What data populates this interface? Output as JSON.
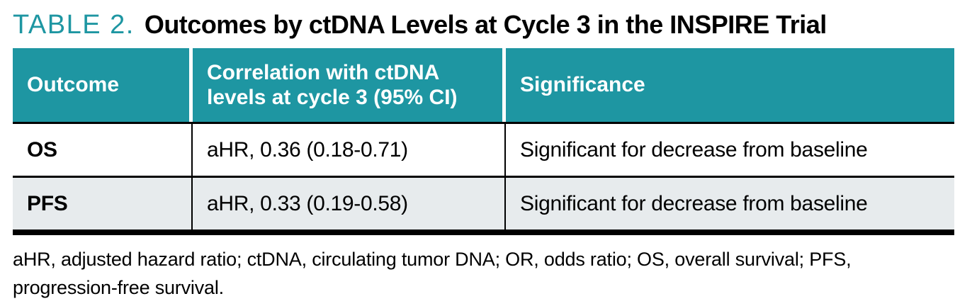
{
  "colors": {
    "teal": "#1E96A2",
    "alt_row_bg": "#E7EBED",
    "rule_black": "#000000",
    "header_text": "#ffffff"
  },
  "title": {
    "label": "TABLE 2.",
    "text": "Outcomes by ctDNA Levels at Cycle 3 in the INSPIRE Trial"
  },
  "table": {
    "columns": [
      "Outcome",
      "Correlation with ctDNA levels at cycle 3 (95% CI)",
      "Significance"
    ],
    "rows": [
      {
        "outcome": "OS",
        "correlation": "aHR, 0.36 (0.18-0.71)",
        "significance": "Significant for decrease from baseline"
      },
      {
        "outcome": "PFS",
        "correlation": "aHR, 0.33 (0.19-0.58)",
        "significance": "Significant for decrease from baseline"
      }
    ]
  },
  "footnote": {
    "line1": "aHR, adjusted hazard ratio; ctDNA, circulating tumor DNA; OR, odds ratio; OS, overall survival; PFS,",
    "line2": "progression-free survival."
  }
}
